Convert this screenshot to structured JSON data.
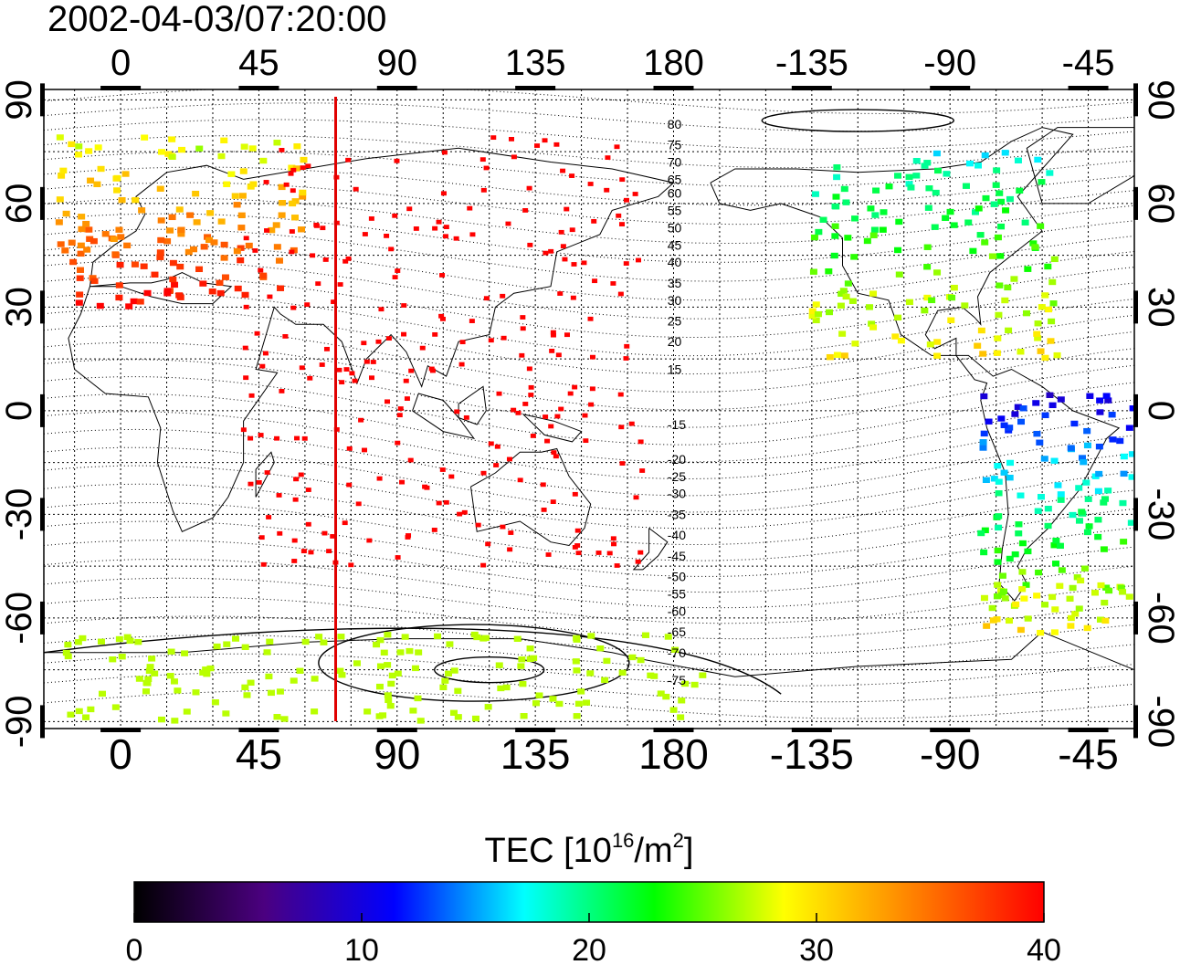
{
  "title": "2002-04-03/07:20:00",
  "map": {
    "lon_ticks": [
      "0",
      "45",
      "90",
      "135",
      "180",
      "-135",
      "-90",
      "-45"
    ],
    "lon_tick_values": [
      0,
      45,
      90,
      135,
      180,
      225,
      270,
      315
    ],
    "lat_ticks": [
      "90",
      "60",
      "30",
      "0",
      "-30",
      "-60",
      "-90"
    ],
    "lat_tick_values": [
      90,
      60,
      30,
      0,
      -30,
      -60,
      -90
    ],
    "lon_range": [
      -25,
      330
    ],
    "lat_range": [
      -92,
      93
    ],
    "grid": true,
    "meridian_marker": {
      "lon": 70,
      "color": "#e00000"
    },
    "contour_labels": [
      {
        "text": "80",
        "lat": 83
      },
      {
        "text": "75",
        "lat": 77
      },
      {
        "text": "70",
        "lat": 72
      },
      {
        "text": "65",
        "lat": 67
      },
      {
        "text": "60",
        "lat": 63
      },
      {
        "text": "55",
        "lat": 58
      },
      {
        "text": "50",
        "lat": 53
      },
      {
        "text": "45",
        "lat": 48
      },
      {
        "text": "40",
        "lat": 43
      },
      {
        "text": "35",
        "lat": 37
      },
      {
        "text": "30",
        "lat": 32
      },
      {
        "text": "25",
        "lat": 26
      },
      {
        "text": "20",
        "lat": 20
      },
      {
        "text": "15",
        "lat": 12
      },
      {
        "text": "-15",
        "lat": -4
      },
      {
        "text": "-20",
        "lat": -14
      },
      {
        "text": "-25",
        "lat": -19
      },
      {
        "text": "-30",
        "lat": -24
      },
      {
        "text": "-35",
        "lat": -30
      },
      {
        "text": "-40",
        "lat": -36
      },
      {
        "text": "-45",
        "lat": -42
      },
      {
        "text": "-50",
        "lat": -48
      },
      {
        "text": "-55",
        "lat": -53
      },
      {
        "text": "-60",
        "lat": -58
      },
      {
        "text": "-65",
        "lat": -64
      },
      {
        "text": "-70",
        "lat": -70
      },
      {
        "text": "-75",
        "lat": -78
      }
    ],
    "tec_regions": [
      {
        "region": "europe",
        "lon": [
          -20,
          60
        ],
        "lat": [
          30,
          80
        ],
        "value": 27,
        "gradient_to": 40
      },
      {
        "region": "north-america",
        "lon": [
          225,
          305
        ],
        "lat": [
          15,
          75
        ],
        "value": 18,
        "gradient_to": 30
      },
      {
        "region": "south-america",
        "lon": [
          280,
          330
        ],
        "lat": [
          -65,
          5
        ],
        "value": 10,
        "gradient_to": 30
      },
      {
        "region": "asia",
        "lon": [
          40,
          170
        ],
        "lat": [
          -45,
          80
        ],
        "value": 40
      },
      {
        "region": "antarctic",
        "lon": [
          -20,
          190
        ],
        "lat": [
          -90,
          -65
        ],
        "value": 27
      }
    ]
  },
  "colorbar": {
    "label_prefix": "TEC  [10",
    "label_exp1": "16",
    "label_mid": "/m",
    "label_exp2": "2",
    "label_suffix": "]",
    "min": 0,
    "max": 40,
    "ticks": [
      "0",
      "10",
      "20",
      "30",
      "40"
    ],
    "tick_values": [
      0,
      10,
      20,
      30,
      40
    ],
    "stops": [
      "#000000",
      "#4b0080",
      "#0000ff",
      "#00ffff",
      "#00ff00",
      "#ffff00",
      "#ff8000",
      "#ff0000"
    ]
  }
}
